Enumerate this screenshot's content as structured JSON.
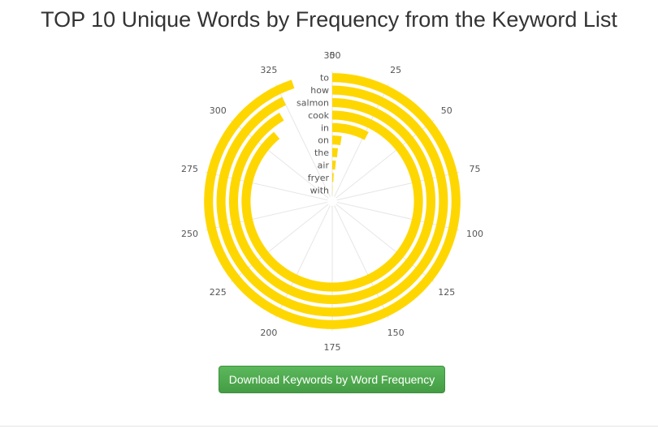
{
  "title": "TOP 10 Unique Words by Frequency from the Keyword List",
  "download_button": "Download Keywords by Word Frequency",
  "chart_data": {
    "type": "bar",
    "layout": "radial",
    "categories": [
      "to",
      "how",
      "salmon",
      "cook",
      "in",
      "on",
      "the",
      "air",
      "fryer",
      "with"
    ],
    "values": [
      332,
      325,
      320,
      311,
      27,
      8,
      6,
      5,
      3,
      1
    ],
    "ylim": [
      0,
      350
    ],
    "ticks": [
      0,
      25,
      50,
      75,
      100,
      125,
      150,
      175,
      200,
      225,
      250,
      275,
      300,
      325,
      350
    ],
    "bar_color": "#FFD700",
    "grid": true
  }
}
